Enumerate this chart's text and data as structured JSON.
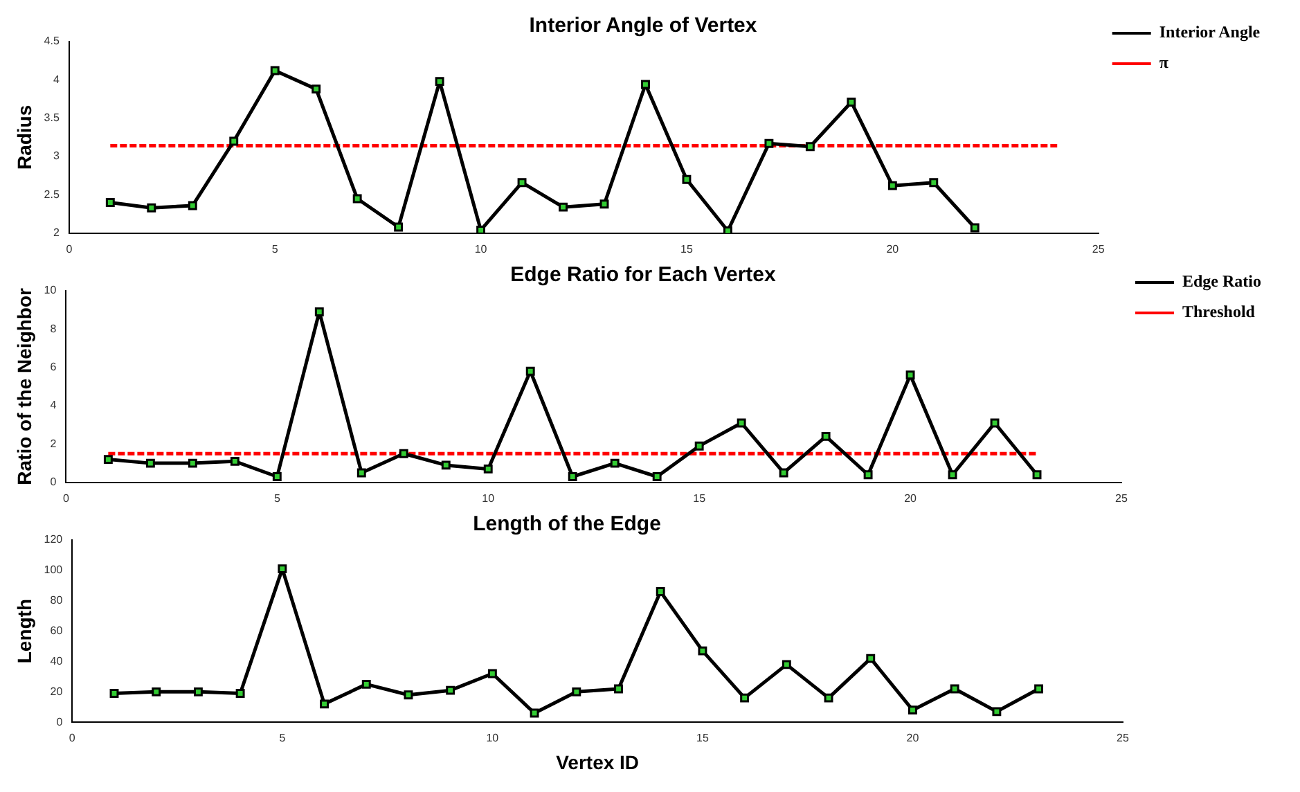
{
  "chart_data": [
    {
      "type": "line",
      "title": "Interior Angle of Vertex",
      "ylabel": "Radius",
      "series": [
        {
          "name": "Interior Angle",
          "color": "#000000",
          "marker": "square",
          "x": [
            1,
            2,
            3,
            4,
            5,
            6,
            7,
            8,
            9,
            10,
            11,
            12,
            13,
            14,
            15,
            16,
            17,
            18,
            19,
            20,
            21,
            22
          ],
          "values": [
            2.4,
            2.33,
            2.36,
            3.2,
            4.12,
            3.88,
            2.45,
            2.08,
            3.98,
            2.04,
            2.66,
            2.34,
            2.38,
            3.94,
            2.7,
            2.03,
            3.17,
            3.13,
            3.71,
            2.62,
            2.66,
            2.07
          ]
        },
        {
          "name": "π",
          "color": "#ff0000",
          "line_style": "dashed",
          "marker": "none",
          "x": [
            1,
            24
          ],
          "values": [
            3.14,
            3.14
          ]
        }
      ],
      "xlim": [
        0,
        25
      ],
      "xticks": [
        0,
        5,
        10,
        15,
        20,
        25
      ],
      "ylim": [
        2,
        4.5
      ],
      "yticks": [
        2,
        2.5,
        3,
        3.5,
        4,
        4.5
      ],
      "grid": false,
      "legend": "top right"
    },
    {
      "type": "line",
      "title": "Edge Ratio for Each Vertex",
      "ylabel": "Ratio of the Neighbor",
      "x": [
        1,
        2,
        3,
        4,
        5,
        6,
        7,
        8,
        9,
        10,
        11,
        12,
        13,
        14,
        15,
        16,
        17,
        18,
        19,
        20,
        21,
        22,
        23
      ],
      "series": [
        {
          "name": "Edge Ratio",
          "color": "#000000",
          "marker": "square",
          "values": [
            1.2,
            1.0,
            1.0,
            1.1,
            0.3,
            8.9,
            0.5,
            1.5,
            0.9,
            0.7,
            5.8,
            0.3,
            1.0,
            0.3,
            1.9,
            3.1,
            0.5,
            2.4,
            0.4,
            5.6,
            0.4,
            3.1,
            0.4
          ]
        },
        {
          "name": "Threshold",
          "color": "#ff0000",
          "line_style": "dashed",
          "marker": "none",
          "x": [
            1,
            23
          ],
          "values": [
            1.5,
            1.5
          ]
        }
      ],
      "xlim": [
        0,
        25
      ],
      "xticks": [
        0,
        5,
        10,
        15,
        20,
        25
      ],
      "ylim": [
        0,
        10
      ],
      "yticks": [
        0,
        2,
        4,
        6,
        8,
        10
      ],
      "grid": false,
      "legend": "top right"
    },
    {
      "type": "line",
      "title": "Length of the Edge",
      "ylabel": "Length",
      "xlabel": "Vertex ID",
      "x": [
        1,
        2,
        3,
        4,
        5,
        6,
        7,
        8,
        9,
        10,
        11,
        12,
        13,
        14,
        15,
        16,
        17,
        18,
        19,
        20,
        21,
        22,
        23
      ],
      "series": [
        {
          "color": "#000000",
          "marker": "square",
          "values": [
            19,
            20,
            20,
            19,
            101,
            12,
            25,
            18,
            21,
            32,
            6,
            20,
            22,
            86,
            47,
            16,
            38,
            16,
            42,
            8,
            22,
            7,
            22
          ]
        }
      ],
      "xlim": [
        0,
        25
      ],
      "xticks": [
        0,
        5,
        10,
        15,
        20,
        25
      ],
      "ylim": [
        0,
        120
      ],
      "yticks": [
        0,
        20,
        40,
        60,
        80,
        100,
        120
      ],
      "grid": false,
      "legend": false
    }
  ]
}
